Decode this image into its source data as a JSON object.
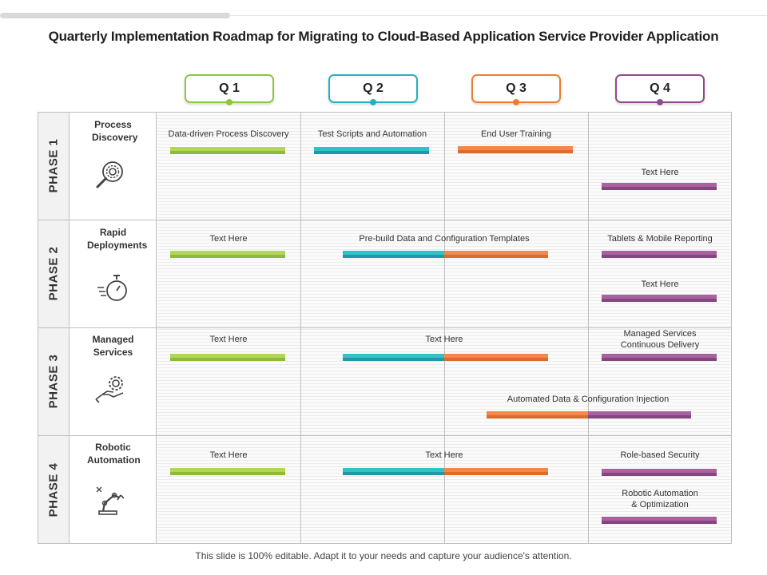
{
  "title": "Quarterly Implementation Roadmap for Migrating to Cloud-Based Application Service Provider Application",
  "quarters": [
    {
      "label": "Q 1",
      "color": "#8dc63f"
    },
    {
      "label": "Q 2",
      "color": "#27b1be"
    },
    {
      "label": "Q 3",
      "color": "#ef7d31"
    },
    {
      "label": "Q 4",
      "color": "#8e4b8c"
    }
  ],
  "colors": {
    "green": {
      "top": "#b3d655",
      "bot": "#8fb93a"
    },
    "teal": {
      "top": "#2fc3c9",
      "bot": "#1f99a6"
    },
    "orange": {
      "top": "#f4874a",
      "bot": "#dd6b2b"
    },
    "purple": {
      "top": "#a8629f",
      "bot": "#83467e"
    }
  },
  "phases": [
    {
      "label": "PHASE 1",
      "category": "Process Discovery",
      "icon": "magnifier-gear-icon"
    },
    {
      "label": "PHASE 2",
      "category": "Rapid Deployments",
      "icon": "stopwatch-icon"
    },
    {
      "label": "PHASE 3",
      "category": "Managed Services",
      "icon": "hand-gear-icon"
    },
    {
      "label": "PHASE 4",
      "category": "Robotic Automation",
      "icon": "robotic-arm-icon"
    }
  ],
  "tasks": {
    "p1_q1": "Data-driven Process Discovery",
    "p1_q2": "Test Scripts and Automation",
    "p1_q3": "End User Training",
    "p1_q4": "Text Here",
    "p2_q1": "Text Here",
    "p2_q23": "Pre-build Data and Configuration Templates",
    "p2_q4a": "Tablets & Mobile Reporting",
    "p2_q4b": "Text Here",
    "p3_q1": "Text Here",
    "p3_q23": "Text Here",
    "p3_q4a_line1": "Managed Services",
    "p3_q4a_line2": "Continuous Delivery",
    "p3_q34": "Automated Data & Configuration Injection",
    "p4_q1": "Text Here",
    "p4_q23": "Text Here",
    "p4_q4a": "Role-based Security",
    "p4_q4b_line1": "Robotic Automation",
    "p4_q4b_line2": "& Optimization"
  },
  "footer": "This slide is 100% editable. Adapt it to your needs and capture your audience's attention."
}
